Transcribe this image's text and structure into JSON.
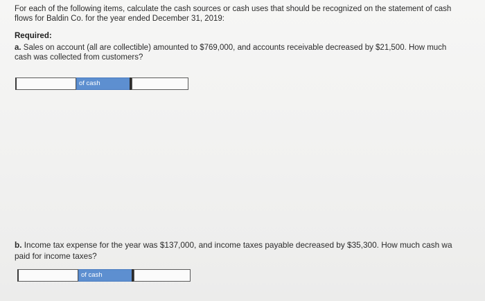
{
  "intro": {
    "line1": "For each of the following items, calculate the cash sources or cash uses that should be recognized on the statement of cash",
    "line2": "flows for Baldin Co. for the year ended December 31, 2019:"
  },
  "required": {
    "heading": "Required:"
  },
  "question_a": {
    "letter": "a.",
    "line1": "Sales on account (all are collectible) amounted to $769,000, and accounts receivable decreased by $21,500. How much",
    "line2": "cash was collected from customers?"
  },
  "answer_a": {
    "amount_value": "",
    "unit_label": "of cash",
    "trail_value": ""
  },
  "question_b": {
    "letter": "b.",
    "line1": "Income tax expense for the year was $137,000, and income taxes payable decreased by $35,300. How much cash wa",
    "line2": "paid for income taxes?"
  },
  "answer_b": {
    "amount_value": "",
    "unit_label": "of cash",
    "trail_value": ""
  },
  "colors": {
    "unit_label_bg": "#5d8fd0",
    "page_bg": "#f4f4f3"
  }
}
